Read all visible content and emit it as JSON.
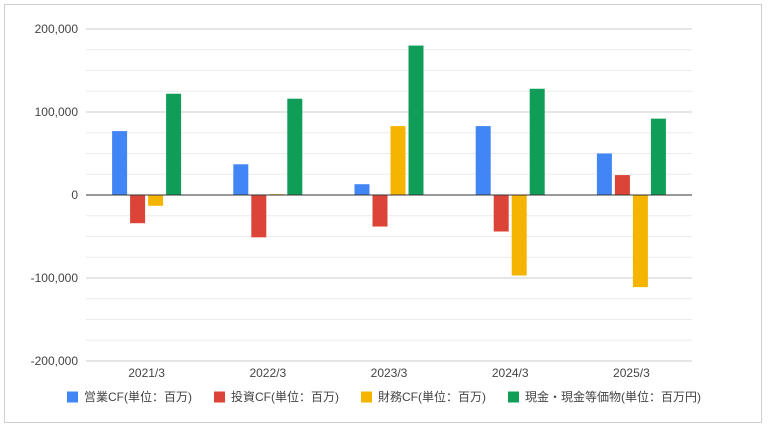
{
  "chart_data": {
    "type": "bar",
    "categories": [
      "2021/3",
      "2022/3",
      "2023/3",
      "2024/3",
      "2025/3"
    ],
    "series": [
      {
        "name": "営業CF(単位：百万)",
        "color": "#4285f4",
        "values": [
          77000,
          37000,
          13000,
          83000,
          50000
        ]
      },
      {
        "name": "投資CF(単位：百万)",
        "color": "#db4437",
        "values": [
          -34000,
          -51000,
          -38000,
          -44000,
          24000
        ]
      },
      {
        "name": "財務CF(単位：百万)",
        "color": "#f4b400",
        "values": [
          -13000,
          1000,
          83000,
          -97000,
          -111000
        ]
      },
      {
        "name": "現金・現金等価物(単位：百万円)",
        "color": "#0f9d58",
        "values": [
          122000,
          116000,
          180000,
          128000,
          92000
        ]
      }
    ],
    "ylim": [
      -200000,
      200000
    ],
    "y_ticks": [
      "200,000",
      "100,000",
      "0",
      "-100,000",
      "-200,000"
    ],
    "y_tick_values": [
      200000,
      100000,
      0,
      -100000,
      -200000
    ],
    "grid": true,
    "legend_position": "bottom",
    "title": "",
    "xlabel": "",
    "ylabel": ""
  }
}
